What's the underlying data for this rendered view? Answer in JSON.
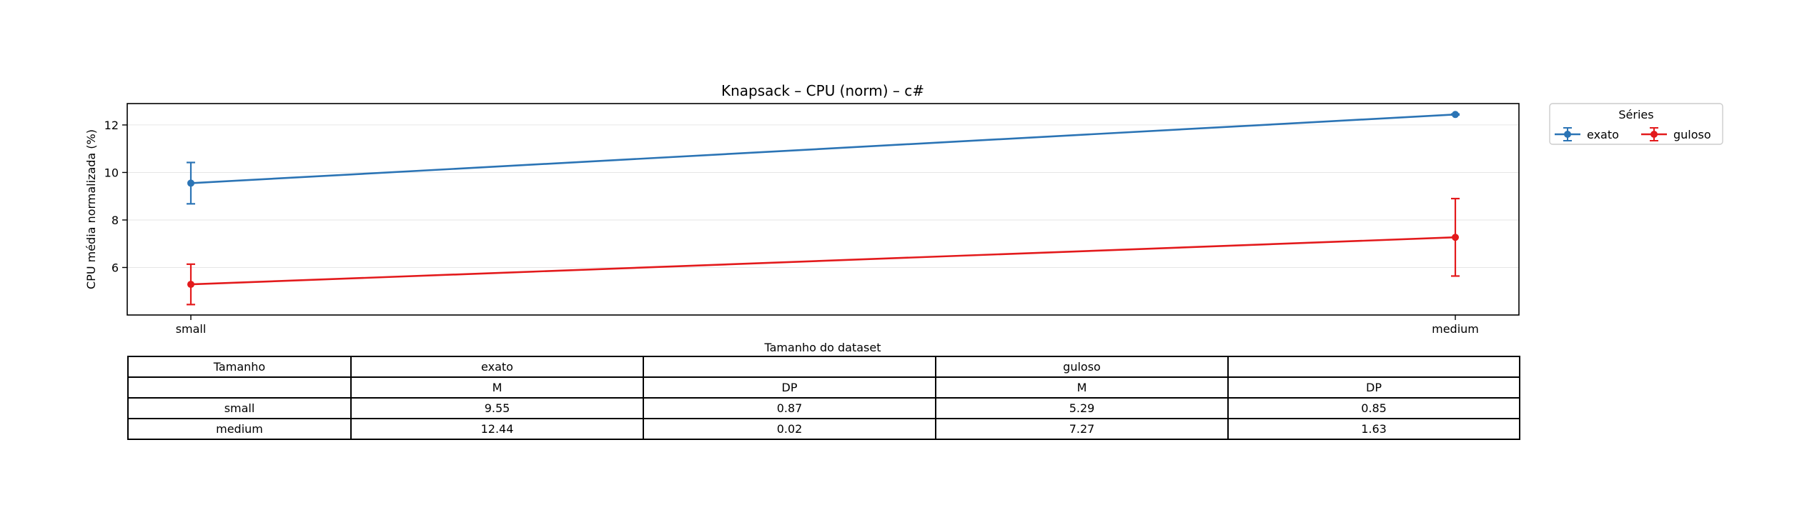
{
  "chart_data": {
    "type": "line",
    "title": "Knapsack – CPU (norm) – c#",
    "xlabel": "Tamanho do dataset",
    "ylabel": "CPU média normalizada (%)",
    "categories": [
      "small",
      "medium"
    ],
    "ylim": [
      4.0,
      12.9
    ],
    "yticks": [
      6,
      8,
      10,
      12
    ],
    "grid": "horizontal",
    "legend": {
      "title": "Séries",
      "placement": "outside right"
    },
    "series": [
      {
        "name": "exato",
        "color": "#2b74b5",
        "values": [
          9.55,
          12.44
        ],
        "errors": [
          0.87,
          0.02
        ]
      },
      {
        "name": "guloso",
        "color": "#e31a1c",
        "values": [
          5.29,
          7.27
        ],
        "errors": [
          0.85,
          1.63
        ]
      }
    ]
  },
  "table": {
    "header1": [
      "Tamanho",
      "exato",
      "",
      "guloso",
      ""
    ],
    "header2": [
      "",
      "M",
      "DP",
      "M",
      "DP"
    ],
    "rows": [
      [
        "small",
        "9.55",
        "0.87",
        "5.29",
        "0.85"
      ],
      [
        "medium",
        "12.44",
        "0.02",
        "7.27",
        "1.63"
      ]
    ]
  }
}
